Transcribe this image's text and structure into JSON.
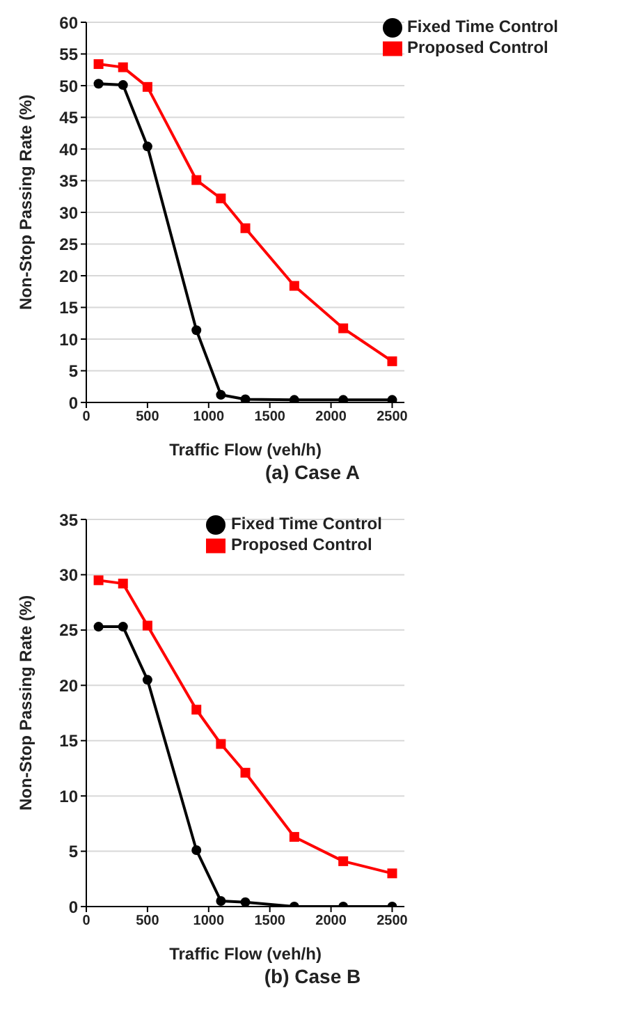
{
  "chart_data": [
    {
      "type": "line",
      "title": "(a)  Case A",
      "xlabel": "Traffic Flow (veh/h)",
      "ylabel": "Non-Stop Passing Rate (%)",
      "x": [
        100,
        300,
        500,
        900,
        1100,
        1300,
        1700,
        2100,
        2500
      ],
      "series": [
        {
          "name": "Fixed Time Control",
          "color": "#000000",
          "marker": "circle",
          "values": [
            50.3,
            50.1,
            40.4,
            11.4,
            1.2,
            0.5,
            0.4,
            0.4,
            0.4
          ]
        },
        {
          "name": "Proposed Control",
          "color": "#ff0000",
          "marker": "square",
          "values": [
            53.4,
            52.9,
            49.8,
            35.1,
            32.2,
            27.5,
            18.4,
            11.7,
            6.5
          ]
        }
      ],
      "xlim": [
        0,
        2600
      ],
      "xticks": [
        0,
        500,
        1000,
        1500,
        2000,
        2500
      ],
      "ylim": [
        0,
        60
      ],
      "yticks": [
        0,
        5,
        10,
        15,
        20,
        25,
        30,
        35,
        40,
        45,
        50,
        55,
        60
      ],
      "grid": "y",
      "legend": "top right"
    },
    {
      "type": "line",
      "title": "(b)  Case B",
      "xlabel": "Traffic Flow (veh/h)",
      "ylabel": "Non-Stop Passing Rate (%)",
      "x": [
        100,
        300,
        500,
        900,
        1100,
        1300,
        1700,
        2100,
        2500
      ],
      "series": [
        {
          "name": "Fixed Time Control",
          "color": "#000000",
          "marker": "circle",
          "values": [
            25.3,
            25.3,
            20.5,
            5.1,
            0.5,
            0.4,
            0.0,
            0.0,
            0.0
          ]
        },
        {
          "name": "Proposed Control",
          "color": "#ff0000",
          "marker": "square",
          "values": [
            29.5,
            29.2,
            25.4,
            17.8,
            14.7,
            12.1,
            6.3,
            4.1,
            3.0
          ]
        }
      ],
      "xlim": [
        0,
        2600
      ],
      "xticks": [
        0,
        500,
        1000,
        1500,
        2000,
        2500
      ],
      "ylim": [
        0,
        35
      ],
      "yticks": [
        0,
        5,
        10,
        15,
        20,
        25,
        30,
        35
      ],
      "grid": "y",
      "legend": "top"
    }
  ]
}
